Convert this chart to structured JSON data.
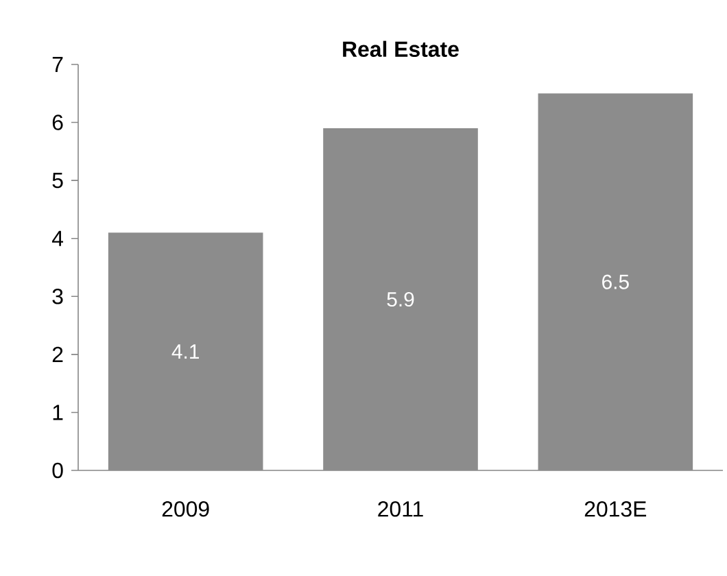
{
  "chart_data": {
    "type": "bar",
    "title": "Real Estate",
    "categories": [
      "2009",
      "2011",
      "2013E"
    ],
    "values": [
      4.1,
      5.9,
      6.5
    ],
    "color": "#8c8c8c",
    "ylim": [
      0,
      7
    ],
    "yticks": [
      0,
      1,
      2,
      3,
      4,
      5,
      6,
      7
    ],
    "data_labels": true
  }
}
